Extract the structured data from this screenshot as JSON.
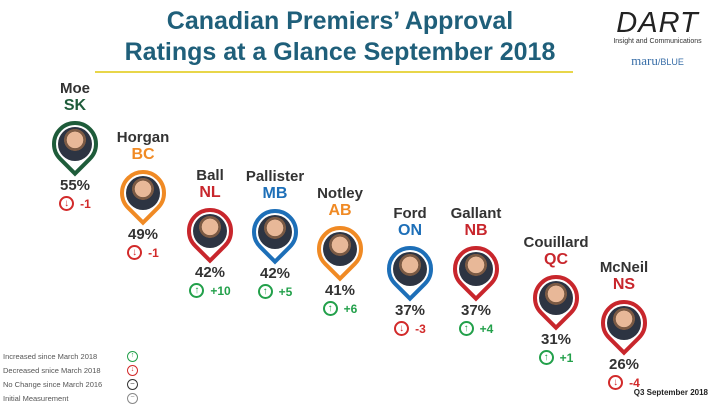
{
  "title": {
    "line1": "Canadian Premiers’ Approval",
    "line2": "Ratings at a Glance September 2018"
  },
  "logo": {
    "brand": "DART",
    "tagline": "Insight and Communications",
    "partner": "maru",
    "partner_suffix": "/BLUE"
  },
  "colors": {
    "up": "#22a04a",
    "down": "#d22a2a",
    "green": "#1e5c3a",
    "orange": "#f08a24",
    "red": "#c8262c",
    "blue": "#1d6fb8"
  },
  "premiers": [
    {
      "name": "Moe",
      "province": "SK",
      "approval": "55%",
      "change": "-1",
      "direction": "down",
      "color": "#1e5c3a"
    },
    {
      "name": "Horgan",
      "province": "BC",
      "approval": "49%",
      "change": "-1",
      "direction": "down",
      "color": "#f08a24"
    },
    {
      "name": "Ball",
      "province": "NL",
      "approval": "42%",
      "change": "+10",
      "direction": "up",
      "color": "#c8262c"
    },
    {
      "name": "Pallister",
      "province": "MB",
      "approval": "42%",
      "change": "+5",
      "direction": "up",
      "color": "#1d6fb8"
    },
    {
      "name": "Notley",
      "province": "AB",
      "approval": "41%",
      "change": "+6",
      "direction": "up",
      "color": "#f08a24"
    },
    {
      "name": "Ford",
      "province": "ON",
      "approval": "37%",
      "change": "-3",
      "direction": "down",
      "color": "#1d6fb8"
    },
    {
      "name": "Gallant",
      "province": "NB",
      "approval": "37%",
      "change": "+4",
      "direction": "up",
      "color": "#c8262c"
    },
    {
      "name": "Couillard",
      "province": "QC",
      "approval": "31%",
      "change": "+1",
      "direction": "up",
      "color": "#c8262c"
    },
    {
      "name": "McNeil",
      "province": "NS",
      "approval": "26%",
      "change": "-4",
      "direction": "down",
      "color": "#c8262c"
    }
  ],
  "legend": [
    {
      "label": "Increased since March 2018",
      "icon": "arrow-up-icon"
    },
    {
      "label": "Decreased snice March 2018",
      "icon": "arrow-down-icon"
    },
    {
      "label": "No Change since March 2016",
      "icon": "no-change-icon"
    },
    {
      "label": "Initial Measurement",
      "icon": "initial-icon"
    }
  ],
  "footer": "Q3 September 2018"
}
